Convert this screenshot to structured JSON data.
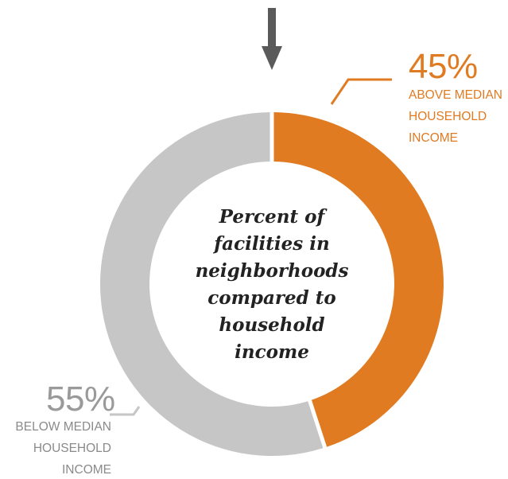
{
  "chart_data": {
    "type": "pie",
    "title": "Percent of facilities in neighborhoods compared to household income",
    "title_lines": [
      "Percent of",
      "facilities in",
      "neighborhoods",
      "compared to",
      "household income"
    ],
    "slices": [
      {
        "name": "ABOVE MEDIAN HOUSEHOLD INCOME",
        "percent_label": "45%",
        "value": 45,
        "color": "#e07b22",
        "label_lines": [
          "ABOVE MEDIAN",
          "HOUSEHOLD",
          "INCOME"
        ]
      },
      {
        "name": "BELOW MEDIAN HOUSEHOLD INCOME",
        "percent_label": "55%",
        "value": 55,
        "color": "#c6c6c6",
        "label_lines": [
          "BELOW MEDIAN",
          "HOUSEHOLD",
          "INCOME"
        ]
      }
    ],
    "style": "donut",
    "start": "top, clockwise",
    "arrow_color": "#5a5a5a"
  }
}
